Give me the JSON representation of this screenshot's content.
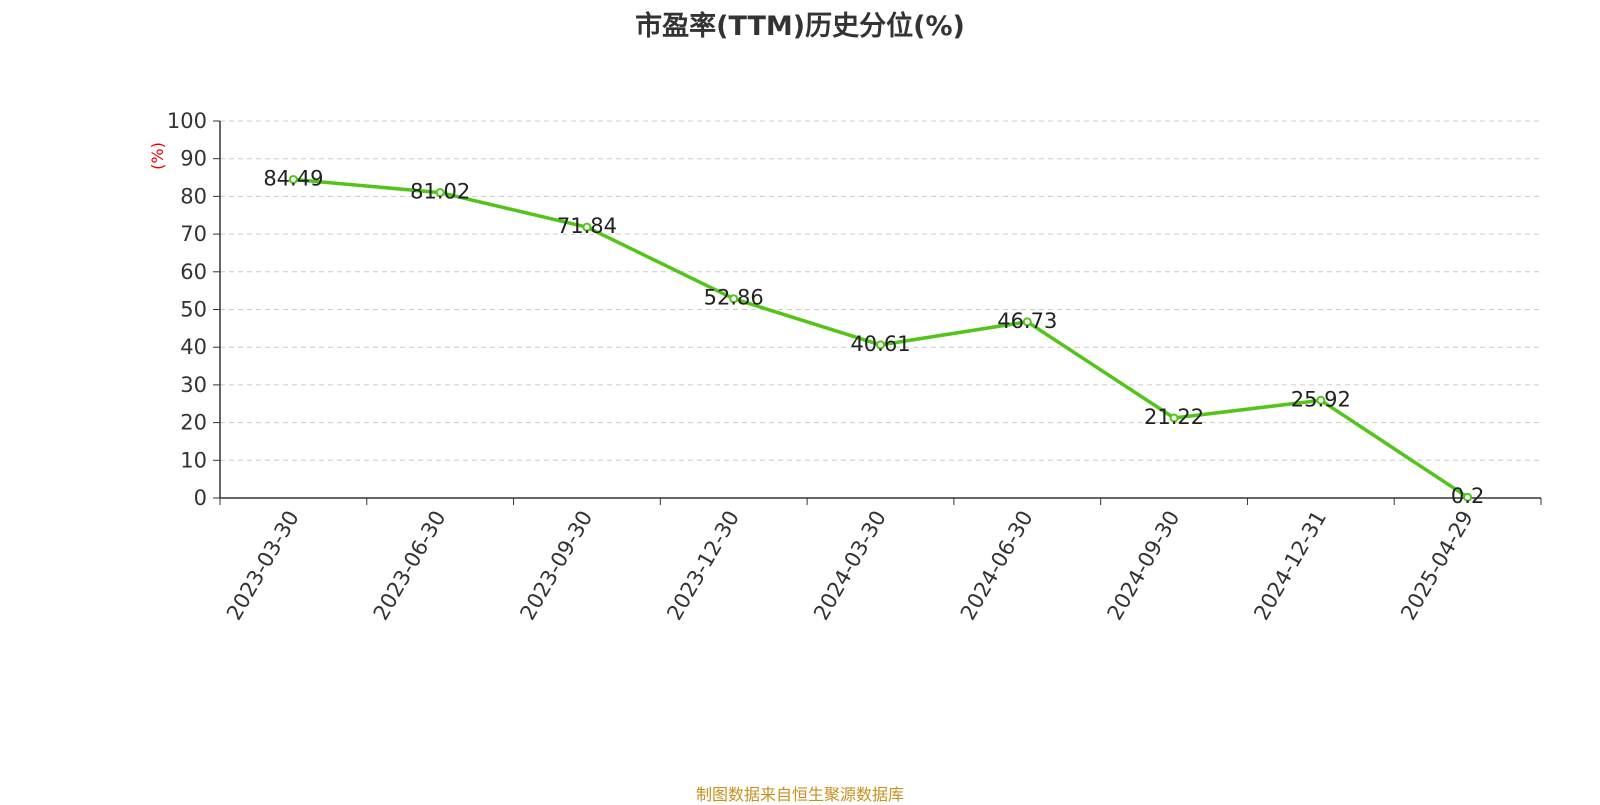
{
  "chart_data": {
    "type": "line",
    "title": "市盈率(TTM)历史分位(%)",
    "ylabel": "(%)",
    "xlabel": "",
    "categories": [
      "2023-03-30",
      "2023-06-30",
      "2023-09-30",
      "2023-12-30",
      "2024-03-30",
      "2024-06-30",
      "2024-09-30",
      "2024-12-31",
      "2025-04-29"
    ],
    "series": [
      {
        "values": [
          84.49,
          81.02,
          71.84,
          52.86,
          40.61,
          46.73,
          21.22,
          25.92,
          0.2
        ],
        "labels": [
          "84.49",
          "81.02",
          "71.84",
          "52.86",
          "40.61",
          "46.73",
          "21.22",
          "25.92",
          "0.2"
        ],
        "color": "#52c41a"
      }
    ],
    "ylim": [
      0,
      100
    ],
    "yticks": [
      0,
      10,
      20,
      30,
      40,
      50,
      60,
      70,
      80,
      90,
      100
    ],
    "grid": true,
    "ylabel_color": "#e60000"
  },
  "footer": {
    "source": "制图数据来自恒生聚源数据库"
  }
}
